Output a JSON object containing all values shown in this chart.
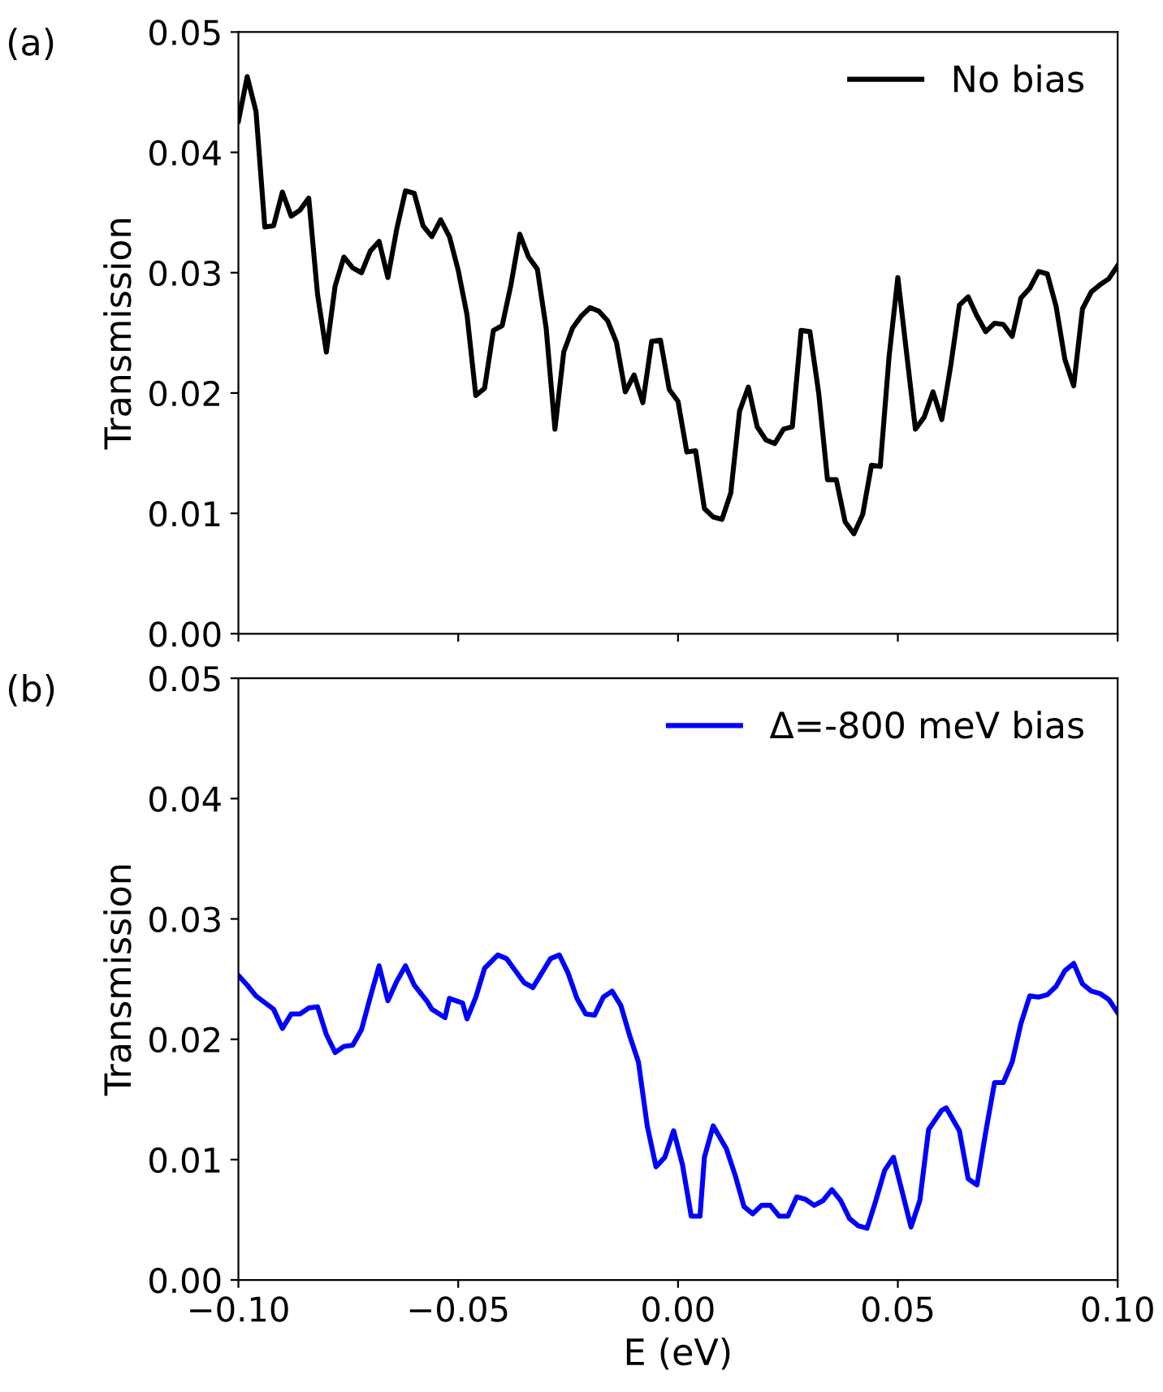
{
  "chart_data": [
    {
      "type": "line",
      "ylabel": "Transmission",
      "annotations": [
        "(a)"
      ],
      "legend": "top right",
      "grid": false,
      "tick_labels": "y",
      "xlim": [
        -0.1,
        0.1
      ],
      "ylim": [
        0,
        0.05
      ],
      "xticks": [
        {
          "value": -0.1,
          "label": null
        },
        {
          "value": -0.05,
          "label": null
        },
        {
          "value": 0,
          "label": null
        },
        {
          "value": 0.05,
          "label": null
        },
        {
          "value": 0.1,
          "label": null
        }
      ],
      "yticks": [
        {
          "value": 0,
          "label": "0.00"
        },
        {
          "value": 0.01,
          "label": "0.01"
        },
        {
          "value": 0.02,
          "label": "0.02"
        },
        {
          "value": 0.03,
          "label": "0.03"
        },
        {
          "value": 0.04,
          "label": "0.04"
        },
        {
          "value": 0.05,
          "label": "0.05"
        }
      ],
      "series": [
        {
          "name": "No bias",
          "color": "#000000",
          "x": [
            -0.1,
            -0.098,
            -0.096,
            -0.094,
            -0.092,
            -0.09,
            -0.088,
            -0.086,
            -0.084,
            -0.082,
            -0.08,
            -0.078,
            -0.076,
            -0.074,
            -0.072,
            -0.07,
            -0.068,
            -0.066,
            -0.064,
            -0.062,
            -0.06,
            -0.058,
            -0.056,
            -0.054,
            -0.052,
            -0.05,
            -0.048,
            -0.046,
            -0.044,
            -0.042,
            -0.04,
            -0.038,
            -0.036,
            -0.034,
            -0.032,
            -0.03,
            -0.028,
            -0.026,
            -0.024,
            -0.022,
            -0.02,
            -0.018,
            -0.016,
            -0.014,
            -0.012,
            -0.01,
            -0.008,
            -0.006,
            -0.004,
            -0.002,
            0,
            0.002,
            0.004,
            0.006,
            0.008,
            0.01,
            0.012,
            0.014,
            0.016,
            0.018,
            0.02,
            0.022,
            0.024,
            0.026,
            0.028,
            0.03,
            0.032,
            0.034,
            0.036,
            0.038,
            0.04,
            0.042,
            0.044,
            0.046,
            0.048,
            0.05,
            0.052,
            0.054,
            0.056,
            0.058,
            0.06,
            0.062,
            0.064,
            0.066,
            0.068,
            0.07,
            0.072,
            0.074,
            0.076,
            0.078,
            0.08,
            0.082,
            0.084,
            0.086,
            0.088,
            0.09,
            0.092,
            0.094,
            0.096,
            0.098,
            0.1
          ],
          "values": [
            0.0426,
            0.0463,
            0.0434,
            0.0338,
            0.0339,
            0.0367,
            0.0347,
            0.0352,
            0.0362,
            0.0282,
            0.0234,
            0.0289,
            0.0313,
            0.0304,
            0.03,
            0.0318,
            0.0326,
            0.0296,
            0.0336,
            0.0368,
            0.0366,
            0.0339,
            0.033,
            0.0344,
            0.033,
            0.0302,
            0.0265,
            0.0198,
            0.0204,
            0.0252,
            0.0256,
            0.029,
            0.0332,
            0.0313,
            0.0303,
            0.0254,
            0.017,
            0.0234,
            0.0254,
            0.0264,
            0.0271,
            0.0268,
            0.026,
            0.0242,
            0.0201,
            0.0215,
            0.0192,
            0.0243,
            0.0244,
            0.0203,
            0.0193,
            0.0151,
            0.0152,
            0.0104,
            0.0097,
            0.0095,
            0.0117,
            0.0185,
            0.0205,
            0.0172,
            0.0161,
            0.0158,
            0.017,
            0.0172,
            0.0252,
            0.0251,
            0.02,
            0.0128,
            0.0128,
            0.0093,
            0.0083,
            0.0099,
            0.014,
            0.0139,
            0.023,
            0.0296,
            0.0233,
            0.017,
            0.018,
            0.0201,
            0.0178,
            0.0222,
            0.0273,
            0.028,
            0.0264,
            0.0251,
            0.0258,
            0.0257,
            0.0247,
            0.0279,
            0.0287,
            0.0301,
            0.0299,
            0.0272,
            0.0228,
            0.0206,
            0.027,
            0.0284,
            0.029,
            0.0295,
            0.0306
          ]
        }
      ]
    },
    {
      "type": "line",
      "xlabel": "E (eV)",
      "ylabel": "Transmission",
      "annotations": [
        "(b)"
      ],
      "legend": "top right",
      "grid": false,
      "xlim": [
        -0.1,
        0.1
      ],
      "ylim": [
        0,
        0.05
      ],
      "xticks": [
        {
          "value": -0.1,
          "label": "−0.10"
        },
        {
          "value": -0.05,
          "label": "−0.05"
        },
        {
          "value": 0,
          "label": "0.00"
        },
        {
          "value": 0.05,
          "label": "0.05"
        },
        {
          "value": 0.1,
          "label": "0.10"
        }
      ],
      "yticks": [
        {
          "value": 0,
          "label": "0.00"
        },
        {
          "value": 0.01,
          "label": "0.01"
        },
        {
          "value": 0.02,
          "label": "0.02"
        },
        {
          "value": 0.03,
          "label": "0.03"
        },
        {
          "value": 0.04,
          "label": "0.04"
        },
        {
          "value": 0.05,
          "label": "0.05"
        }
      ],
      "series": [
        {
          "name": "Δ=-800 meV bias",
          "color": "#0000ff",
          "x": [
            -0.1,
            -0.098,
            -0.096,
            -0.092,
            -0.09,
            -0.088,
            -0.086,
            -0.084,
            -0.082,
            -0.08,
            -0.078,
            -0.076,
            -0.074,
            -0.072,
            -0.07,
            -0.068,
            -0.066,
            -0.064,
            -0.062,
            -0.06,
            -0.057,
            -0.056,
            -0.053,
            -0.052,
            -0.049,
            -0.048,
            -0.046,
            -0.044,
            -0.041,
            -0.039,
            -0.037,
            -0.035,
            -0.033,
            -0.031,
            -0.029,
            -0.027,
            -0.025,
            -0.023,
            -0.021,
            -0.019,
            -0.017,
            -0.015,
            -0.013,
            -0.011,
            -0.009,
            -0.007,
            -0.005,
            -0.003,
            -0.001,
            0.001,
            0.003,
            0.005,
            0.006,
            0.008,
            0.011,
            0.013,
            0.015,
            0.017,
            0.019,
            0.021,
            0.023,
            0.025,
            0.027,
            0.029,
            0.031,
            0.033,
            0.035,
            0.037,
            0.039,
            0.041,
            0.043,
            0.045,
            0.047,
            0.049,
            0.051,
            0.053,
            0.055,
            0.057,
            0.06,
            0.061,
            0.064,
            0.066,
            0.068,
            0.07,
            0.072,
            0.074,
            0.076,
            0.078,
            0.08,
            0.082,
            0.084,
            0.086,
            0.088,
            0.09,
            0.092,
            0.094,
            0.096,
            0.098,
            0.1
          ],
          "values": [
            0.0253,
            0.0245,
            0.0236,
            0.0225,
            0.0209,
            0.0221,
            0.0221,
            0.0226,
            0.0227,
            0.0204,
            0.0189,
            0.0194,
            0.0195,
            0.0208,
            0.0235,
            0.0261,
            0.0232,
            0.0248,
            0.0261,
            0.0245,
            0.0231,
            0.0225,
            0.0218,
            0.0234,
            0.023,
            0.0217,
            0.0235,
            0.0259,
            0.027,
            0.0267,
            0.0257,
            0.0247,
            0.0243,
            0.0255,
            0.0267,
            0.027,
            0.0255,
            0.0234,
            0.0221,
            0.022,
            0.0235,
            0.024,
            0.0228,
            0.0203,
            0.0181,
            0.0128,
            0.0094,
            0.0102,
            0.0124,
            0.0096,
            0.0053,
            0.0053,
            0.0102,
            0.0128,
            0.0109,
            0.0087,
            0.0061,
            0.0055,
            0.0062,
            0.0062,
            0.0053,
            0.0053,
            0.0069,
            0.0067,
            0.0062,
            0.0066,
            0.0075,
            0.0066,
            0.0051,
            0.0045,
            0.0043,
            0.0066,
            0.0091,
            0.0102,
            0.0073,
            0.0044,
            0.0066,
            0.0125,
            0.0141,
            0.0143,
            0.0124,
            0.0084,
            0.0079,
            0.0123,
            0.0164,
            0.0164,
            0.0181,
            0.0213,
            0.0236,
            0.0235,
            0.0237,
            0.0244,
            0.0257,
            0.0263,
            0.0246,
            0.024,
            0.0238,
            0.0233,
            0.0222
          ]
        }
      ]
    }
  ]
}
